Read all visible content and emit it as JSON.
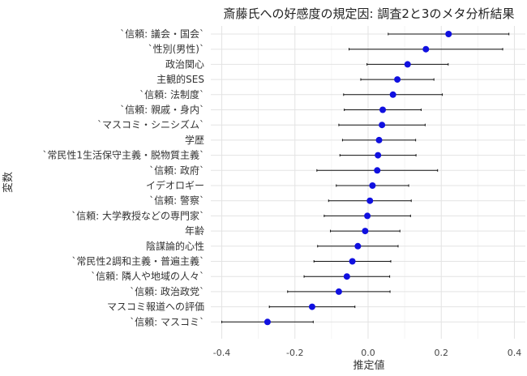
{
  "chart_data": {
    "type": "scatter",
    "title": "斎藤氏への好感度の規定因: 調査2と3のメタ分析結果",
    "xlabel": "推定値",
    "ylabel": "変数",
    "xlim": [
      -0.43,
      0.43
    ],
    "xticks": [
      -0.4,
      -0.2,
      0.0,
      0.2,
      0.4
    ],
    "xtick_labels": [
      "-0.4",
      "-0.2",
      "0.0",
      "0.2",
      "0.4"
    ],
    "grid": true,
    "point_color": "#1010e0",
    "points": [
      {
        "label": "`信頼: 議会・国会`",
        "estimate": 0.22,
        "lo": 0.055,
        "hi": 0.385
      },
      {
        "label": "`性別(男性)`",
        "estimate": 0.158,
        "lo": -0.052,
        "hi": 0.368
      },
      {
        "label": "政治関心",
        "estimate": 0.108,
        "lo": -0.003,
        "hi": 0.219
      },
      {
        "label": "主観的SES",
        "estimate": 0.08,
        "lo": -0.02,
        "hi": 0.18
      },
      {
        "label": "`信頼: 法制度`",
        "estimate": 0.068,
        "lo": -0.067,
        "hi": 0.203
      },
      {
        "label": "`信頼: 親戚・身内`",
        "estimate": 0.04,
        "lo": -0.065,
        "hi": 0.145
      },
      {
        "label": "`マスコミ・シニシズム`",
        "estimate": 0.038,
        "lo": -0.08,
        "hi": 0.156
      },
      {
        "label": "学歴",
        "estimate": 0.03,
        "lo": -0.07,
        "hi": 0.13
      },
      {
        "label": "`常民性1生活保守主義・脱物質主義`",
        "estimate": 0.027,
        "lo": -0.077,
        "hi": 0.131
      },
      {
        "label": "`信頼: 政府`",
        "estimate": 0.025,
        "lo": -0.14,
        "hi": 0.19
      },
      {
        "label": "イデオロギー",
        "estimate": 0.012,
        "lo": -0.087,
        "hi": 0.111
      },
      {
        "label": "`信頼: 警察`",
        "estimate": 0.005,
        "lo": -0.108,
        "hi": 0.118
      },
      {
        "label": "`信頼: 大学教授などの専門家`",
        "estimate": -0.002,
        "lo": -0.12,
        "hi": 0.116
      },
      {
        "label": "年齢",
        "estimate": -0.008,
        "lo": -0.103,
        "hi": 0.087
      },
      {
        "label": "陰謀論的心性",
        "estimate": -0.028,
        "lo": -0.138,
        "hi": 0.082
      },
      {
        "label": "`常民性2調和主義・普遍主義`",
        "estimate": -0.043,
        "lo": -0.148,
        "hi": 0.062
      },
      {
        "label": "`信頼: 隣人や地域の人々`",
        "estimate": -0.058,
        "lo": -0.175,
        "hi": 0.059
      },
      {
        "label": "`信頼: 政治政党`",
        "estimate": -0.08,
        "lo": -0.22,
        "hi": 0.06
      },
      {
        "label": "マスコミ報道への評価",
        "estimate": -0.153,
        "lo": -0.27,
        "hi": -0.036
      },
      {
        "label": "`信頼: マスコミ`",
        "estimate": -0.275,
        "lo": -0.4,
        "hi": -0.15
      }
    ]
  }
}
